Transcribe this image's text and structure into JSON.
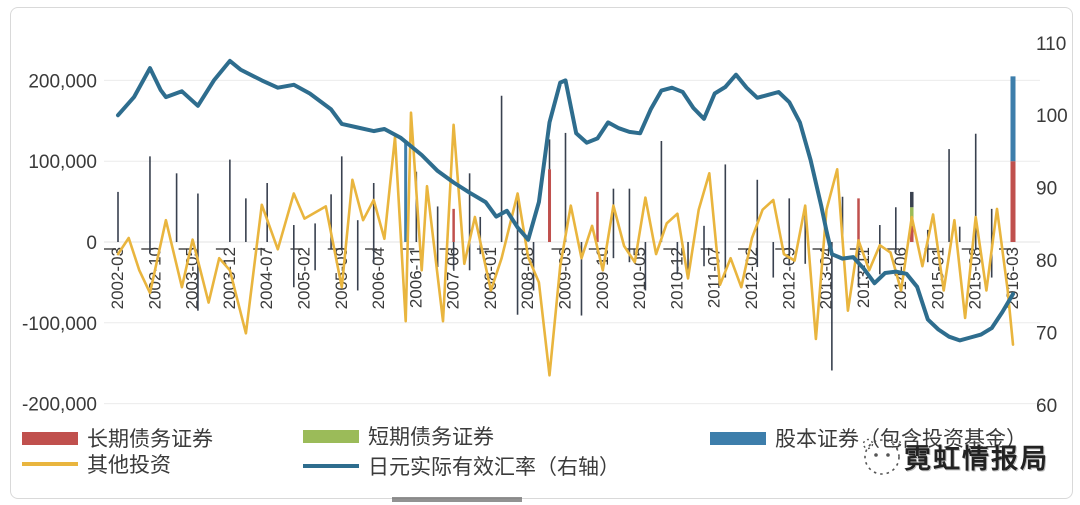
{
  "chart_data": {
    "type": "combo",
    "title": "",
    "x_axis": {
      "unit": "year-month",
      "months_per_tick": 7,
      "total_months": 169,
      "tick_labels": [
        "2002-03",
        "2002-10",
        "2003-05",
        "2003-12",
        "2004-07",
        "2005-02",
        "2005-09",
        "2006-04",
        "2006-11",
        "2007-06",
        "2008-01",
        "2008-08",
        "2009-03",
        "2009-10",
        "2010-05",
        "2010-12",
        "2011-07",
        "2012-02",
        "2012-09",
        "2013-04",
        "2013-11",
        "2014-06",
        "2015-01",
        "2015-08",
        "2016-03"
      ]
    },
    "left_axis": {
      "ticks": [
        "200,000",
        "100,000",
        "0",
        "-100,000",
        "-200,000"
      ],
      "values": [
        200000,
        100000,
        0,
        -100000,
        -200000
      ],
      "range": [
        -250000,
        250000
      ],
      "grid": true
    },
    "right_axis": {
      "ticks": [
        "110",
        "100",
        "90",
        "80",
        "70",
        "60"
      ],
      "values": [
        110,
        100,
        90,
        80,
        70,
        60
      ],
      "range": [
        55,
        115
      ]
    },
    "bar_colors": {
      "dark": "#39414f",
      "red": "#c0504d",
      "olive": "#9bbb59",
      "blue": "#3d7eab"
    },
    "bars": [
      [
        0,
        0,
        62000,
        "dark"
      ],
      [
        6,
        -13000,
        106000,
        "dark"
      ],
      [
        11,
        0,
        85000,
        "dark"
      ],
      [
        15,
        -85000,
        60000,
        "dark"
      ],
      [
        21,
        0,
        102000,
        "dark"
      ],
      [
        24,
        0,
        54000,
        "dark"
      ],
      [
        28,
        0,
        73000,
        "dark"
      ],
      [
        33,
        -56000,
        21000,
        "dark"
      ],
      [
        37,
        -35000,
        23000,
        "dark"
      ],
      [
        40,
        -9000,
        59000,
        "dark"
      ],
      [
        42,
        -10000,
        106000,
        "dark"
      ],
      [
        45,
        -60000,
        27000,
        "dark"
      ],
      [
        48,
        -27000,
        73000,
        "dark"
      ],
      [
        54,
        0,
        125000,
        "blue",
        3
      ],
      [
        56,
        0,
        87000,
        "dark"
      ],
      [
        60,
        -31000,
        44000,
        "dark"
      ],
      [
        63,
        0,
        41000,
        "red",
        2.5
      ],
      [
        63,
        -34000,
        0,
        "dark"
      ],
      [
        66,
        -35000,
        85000,
        "dark"
      ],
      [
        68,
        -15000,
        31000,
        "dark"
      ],
      [
        72,
        0,
        181000,
        "dark"
      ],
      [
        75,
        -90000,
        56000,
        "dark"
      ],
      [
        78,
        -60000,
        0,
        "dark"
      ],
      [
        81,
        0,
        90000,
        "red",
        3
      ],
      [
        81,
        90000,
        127000,
        "dark"
      ],
      [
        84,
        0,
        135000,
        "dark"
      ],
      [
        87,
        -91000,
        0,
        "dark"
      ],
      [
        90,
        0,
        62000,
        "red",
        2.5
      ],
      [
        93,
        -20000,
        66000,
        "dark"
      ],
      [
        96,
        -25000,
        66000,
        "dark"
      ],
      [
        99,
        -60000,
        0,
        "dark"
      ],
      [
        102,
        0,
        125000,
        "dark"
      ],
      [
        105,
        -40000,
        0,
        "dark"
      ],
      [
        107,
        -44000,
        0,
        "dark"
      ],
      [
        110,
        -30000,
        20000,
        "dark"
      ],
      [
        114,
        -44000,
        96000,
        "dark"
      ],
      [
        120,
        -31000,
        77000,
        "dark"
      ],
      [
        123,
        -44000,
        0,
        "dark"
      ],
      [
        126,
        -29000,
        54000,
        "dark"
      ],
      [
        129,
        -27000,
        34000,
        "dark"
      ],
      [
        134,
        -159000,
        0,
        "dark"
      ],
      [
        136,
        0,
        56000,
        "dark"
      ],
      [
        139,
        0,
        54000,
        "red",
        2.5
      ],
      [
        139,
        -56000,
        0,
        "dark"
      ],
      [
        143,
        -40000,
        21000,
        "dark"
      ],
      [
        146,
        -13000,
        43000,
        "dark"
      ],
      [
        149,
        0,
        20000,
        "red",
        3.5
      ],
      [
        149,
        20000,
        43000,
        "olive",
        3.5
      ],
      [
        149,
        43000,
        62000,
        "dark",
        3.5
      ],
      [
        152,
        -25000,
        15000,
        "dark"
      ],
      [
        156,
        0,
        115000,
        "dark"
      ],
      [
        158,
        0,
        19000,
        "dark"
      ],
      [
        161,
        -10000,
        134000,
        "dark"
      ],
      [
        164,
        -44000,
        41000,
        "dark"
      ],
      [
        168,
        0,
        100000,
        "red",
        5
      ],
      [
        168,
        100000,
        205000,
        "blue",
        5
      ]
    ],
    "series": [
      {
        "name": "长期债务证券",
        "type": "bar",
        "axis": "left",
        "color": "#c0504d"
      },
      {
        "name": "短期债务证券",
        "type": "bar",
        "axis": "left",
        "color": "#9bbb59"
      },
      {
        "name": "股本证券（包含投资基金）",
        "type": "bar",
        "axis": "left",
        "color": "#3d7eab"
      },
      {
        "name": "其他投资",
        "type": "line",
        "axis": "left",
        "color": "#e9b53e",
        "width": 2.6,
        "points": [
          [
            0,
            -15000
          ],
          [
            2,
            5000
          ],
          [
            4,
            -35000
          ],
          [
            6,
            -63000
          ],
          [
            9,
            27000
          ],
          [
            12,
            -56000
          ],
          [
            14,
            3000
          ],
          [
            17,
            -75000
          ],
          [
            19,
            -20000
          ],
          [
            21,
            -35000
          ],
          [
            24,
            -113000
          ],
          [
            27,
            46000
          ],
          [
            30,
            -9000
          ],
          [
            33,
            60000
          ],
          [
            35,
            29000
          ],
          [
            39,
            44000
          ],
          [
            42,
            -56000
          ],
          [
            44,
            77000
          ],
          [
            46,
            27000
          ],
          [
            48,
            52000
          ],
          [
            50,
            4000
          ],
          [
            52,
            130000
          ],
          [
            54,
            -98000
          ],
          [
            55,
            160000
          ],
          [
            57,
            -35000
          ],
          [
            58,
            69000
          ],
          [
            61,
            -98000
          ],
          [
            63,
            145000
          ],
          [
            65,
            -27000
          ],
          [
            67,
            31000
          ],
          [
            70,
            -60000
          ],
          [
            72,
            -20000
          ],
          [
            75,
            60000
          ],
          [
            77,
            -19000
          ],
          [
            79,
            -50000
          ],
          [
            81,
            -165000
          ],
          [
            83,
            -30000
          ],
          [
            85,
            45000
          ],
          [
            87,
            -20000
          ],
          [
            89,
            20000
          ],
          [
            91,
            -35000
          ],
          [
            93,
            45000
          ],
          [
            95,
            -5000
          ],
          [
            97,
            -25000
          ],
          [
            99,
            55000
          ],
          [
            101,
            -15000
          ],
          [
            103,
            23000
          ],
          [
            105,
            35000
          ],
          [
            107,
            -45000
          ],
          [
            109,
            40000
          ],
          [
            111,
            85000
          ],
          [
            113,
            -53000
          ],
          [
            115,
            -20000
          ],
          [
            117,
            -56000
          ],
          [
            119,
            5000
          ],
          [
            121,
            40000
          ],
          [
            123,
            52000
          ],
          [
            125,
            -15000
          ],
          [
            127,
            -23000
          ],
          [
            129,
            45000
          ],
          [
            131,
            -120000
          ],
          [
            133,
            40000
          ],
          [
            135,
            90000
          ],
          [
            137,
            -85000
          ],
          [
            139,
            2000
          ],
          [
            141,
            -35000
          ],
          [
            143,
            -4000
          ],
          [
            145,
            -13000
          ],
          [
            147,
            -60000
          ],
          [
            149,
            31000
          ],
          [
            151,
            -30000
          ],
          [
            153,
            34000
          ],
          [
            155,
            -60000
          ],
          [
            157,
            27000
          ],
          [
            159,
            -94000
          ],
          [
            161,
            31000
          ],
          [
            163,
            -60000
          ],
          [
            165,
            41000
          ],
          [
            167,
            -60000
          ],
          [
            168,
            -127000
          ]
        ]
      },
      {
        "name": "日元实际有效汇率（右轴）",
        "type": "line",
        "axis": "right",
        "color": "#2e6d8e",
        "width": 4,
        "points": [
          [
            0,
            100
          ],
          [
            3,
            102.5
          ],
          [
            6,
            106.5
          ],
          [
            8,
            103.5
          ],
          [
            9,
            102.5
          ],
          [
            12,
            103.3
          ],
          [
            15,
            101.3
          ],
          [
            18,
            104.8
          ],
          [
            21,
            107.5
          ],
          [
            23,
            106.3
          ],
          [
            27,
            104.8
          ],
          [
            30,
            103.8
          ],
          [
            33,
            104.2
          ],
          [
            36,
            103
          ],
          [
            40,
            100.8
          ],
          [
            42,
            98.8
          ],
          [
            45,
            98.3
          ],
          [
            48,
            97.8
          ],
          [
            50,
            98.1
          ],
          [
            53,
            96.9
          ],
          [
            57,
            94.5
          ],
          [
            60,
            92.3
          ],
          [
            63,
            90.7
          ],
          [
            66,
            89.3
          ],
          [
            69,
            88
          ],
          [
            71,
            86
          ],
          [
            73,
            86.8
          ],
          [
            75,
            84.5
          ],
          [
            77,
            82.8
          ],
          [
            79,
            88
          ],
          [
            81,
            99
          ],
          [
            83,
            104.5
          ],
          [
            84,
            104.8
          ],
          [
            86,
            97.5
          ],
          [
            88,
            96.2
          ],
          [
            90,
            96.8
          ],
          [
            92,
            99
          ],
          [
            94,
            98.2
          ],
          [
            96,
            97.7
          ],
          [
            98,
            97.5
          ],
          [
            100,
            100.8
          ],
          [
            102,
            103.4
          ],
          [
            104,
            103.8
          ],
          [
            106,
            103.2
          ],
          [
            108,
            101
          ],
          [
            110,
            99.5
          ],
          [
            112,
            103
          ],
          [
            114,
            103.9
          ],
          [
            116,
            105.6
          ],
          [
            118,
            103.8
          ],
          [
            120,
            102.4
          ],
          [
            122,
            102.8
          ],
          [
            124,
            103.2
          ],
          [
            126,
            101.8
          ],
          [
            128,
            99
          ],
          [
            130,
            93.8
          ],
          [
            132,
            87.5
          ],
          [
            133,
            84
          ],
          [
            134,
            80.8
          ],
          [
            136,
            80.2
          ],
          [
            138,
            80.4
          ],
          [
            140,
            78.8
          ],
          [
            142,
            76.8
          ],
          [
            144,
            78.2
          ],
          [
            146,
            78.4
          ],
          [
            148,
            78.1
          ],
          [
            150,
            76.3
          ],
          [
            152,
            71.8
          ],
          [
            154,
            70.4
          ],
          [
            156,
            69.4
          ],
          [
            158,
            68.9
          ],
          [
            160,
            69.3
          ],
          [
            162,
            69.7
          ],
          [
            164,
            70.6
          ],
          [
            166,
            72.8
          ],
          [
            168,
            75.3
          ]
        ]
      }
    ]
  },
  "legend": {
    "items": [
      {
        "label": "长期债务证券",
        "swatch": "bar",
        "color": "#c0504d"
      },
      {
        "label": "短期债务证券",
        "swatch": "bar",
        "color": "#9bbb59"
      },
      {
        "label": "股本证券（包含投资基金）",
        "swatch": "bar",
        "color": "#3d7eab"
      },
      {
        "label": "其他投资",
        "swatch": "line",
        "color": "#e9b53e"
      },
      {
        "label": "日元实际有效汇率（右轴）",
        "swatch": "line",
        "color": "#2e6d8e"
      }
    ]
  },
  "watermark": {
    "text": "霓虹情报局"
  }
}
